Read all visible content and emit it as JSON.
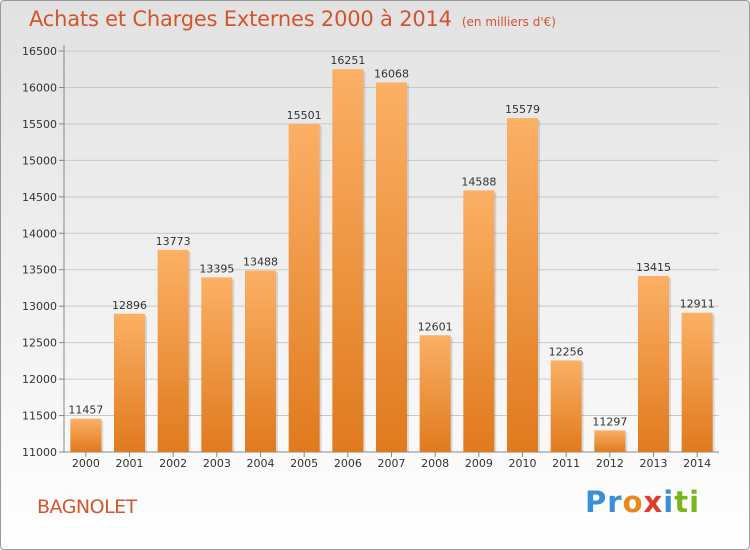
{
  "header": {
    "title": "Achats et Charges Externes 2000 à 2014",
    "subtitle": "(en milliers d'€)"
  },
  "footer": {
    "city": "BAGNOLET",
    "logo_letters": [
      {
        "char": "P",
        "color": "#3a8fd6"
      },
      {
        "char": "r",
        "color": "#3a8fd6"
      },
      {
        "char": "o",
        "color": "#e8891e"
      },
      {
        "char": "x",
        "color": "#e03c2e"
      },
      {
        "char": "i",
        "color": "#3a8fd6"
      },
      {
        "char": "t",
        "color": "#7ab51d"
      },
      {
        "char": "i",
        "color": "#7ab51d"
      }
    ]
  },
  "colors": {
    "bar_light": "#fbb065",
    "bar_dark": "#e07a1e",
    "grid": "#c9c9c9",
    "title": "#d2552e"
  },
  "chart_data": {
    "type": "bar",
    "title": "Achats et Charges Externes 2000 à 2014",
    "subtitle": "(en milliers d'€)",
    "xlabel": "",
    "ylabel": "",
    "categories": [
      "2000",
      "2001",
      "2002",
      "2003",
      "2004",
      "2005",
      "2006",
      "2007",
      "2008",
      "2009",
      "2010",
      "2011",
      "2012",
      "2013",
      "2014"
    ],
    "values": [
      11457,
      12896,
      13773,
      13395,
      13488,
      15501,
      16251,
      16068,
      12601,
      14588,
      15579,
      12256,
      11297,
      13415,
      12911
    ],
    "ylim": [
      11000,
      16500
    ],
    "yticks": [
      11000,
      11500,
      12000,
      12500,
      13000,
      13500,
      14000,
      14500,
      15000,
      15500,
      16000,
      16500
    ],
    "grid": true,
    "legend": "none"
  }
}
